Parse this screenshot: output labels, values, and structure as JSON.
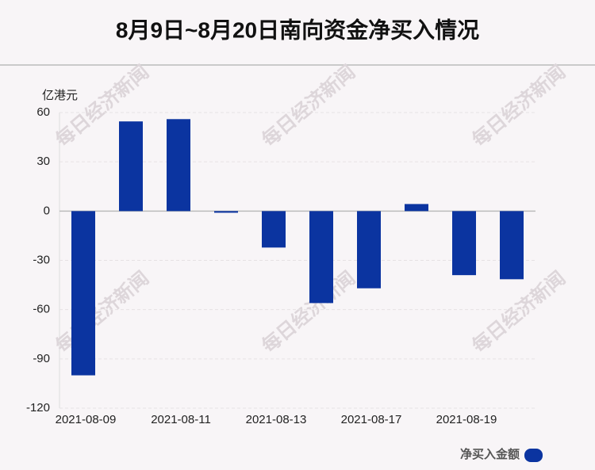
{
  "chart_data": {
    "type": "bar",
    "title": "8月9日~8月20日南向资金净买入情况",
    "y_label": "亿港元",
    "watermark": "每日经济新闻",
    "categories": [
      "2021-08-09",
      null,
      "2021-08-11",
      null,
      "2021-08-13",
      null,
      "2021-08-17",
      null,
      "2021-08-19",
      null
    ],
    "series": [
      {
        "name": "净买入金额",
        "color": "#0b34a0",
        "values": [
          -100,
          54.6,
          56,
          -1,
          -22.2,
          -56,
          -47,
          4.3,
          -39,
          -41.5
        ]
      }
    ],
    "ylim": [
      -120,
      60
    ],
    "yticks": [
      -120,
      -90,
      -60,
      -30,
      0,
      30,
      60
    ],
    "grid": true
  }
}
